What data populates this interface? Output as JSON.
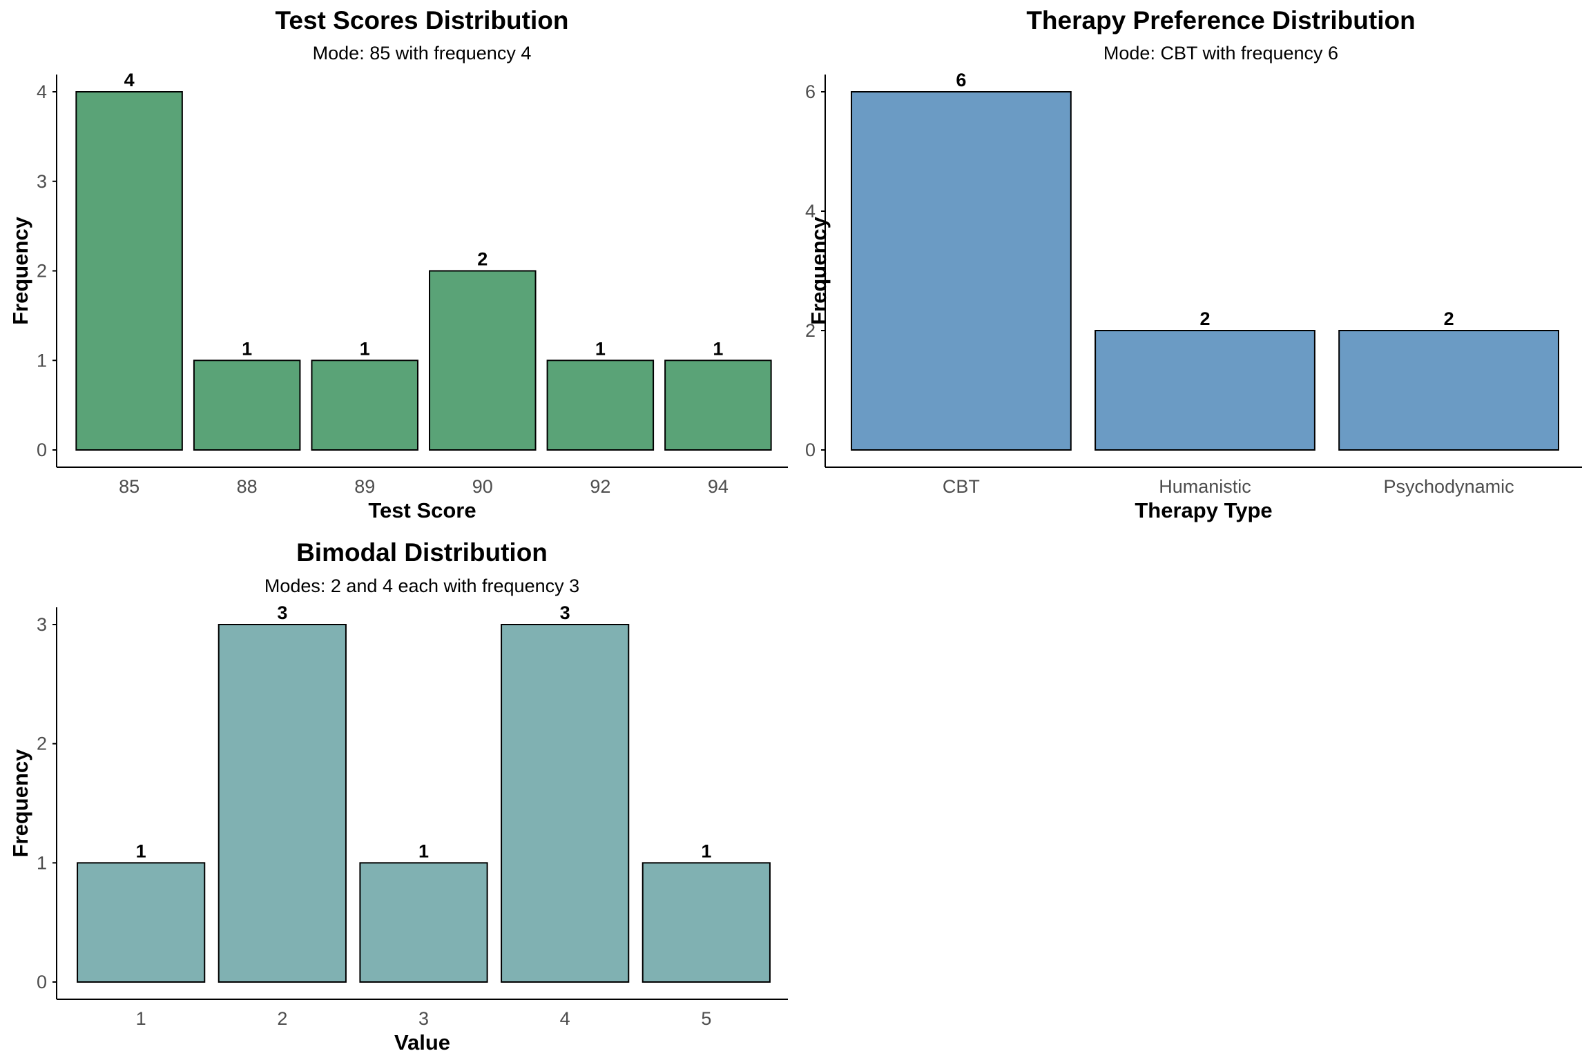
{
  "chart_data": [
    {
      "type": "bar",
      "title": "Test Scores Distribution",
      "subtitle": "Mode: 85 with frequency 4",
      "xlabel": "Test Score",
      "ylabel": "Frequency",
      "categories": [
        "85",
        "88",
        "89",
        "90",
        "92",
        "94"
      ],
      "values": [
        4,
        1,
        1,
        2,
        1,
        1
      ],
      "yticks": [
        0,
        1,
        2,
        3,
        4
      ],
      "ylim": [
        0,
        4
      ],
      "color": "#5aa377",
      "grid": false
    },
    {
      "type": "bar",
      "title": "Therapy Preference Distribution",
      "subtitle": "Mode: CBT with frequency 6",
      "xlabel": "Therapy Type",
      "ylabel": "Frequency",
      "categories": [
        "CBT",
        "Humanistic",
        "Psychodynamic"
      ],
      "values": [
        6,
        2,
        2
      ],
      "yticks": [
        0,
        2,
        4,
        6
      ],
      "ylim": [
        0,
        6
      ],
      "color": "#6b9bc4",
      "grid": false
    },
    {
      "type": "bar",
      "title": "Bimodal Distribution",
      "subtitle": "Modes: 2 and 4 each with frequency 3",
      "xlabel": "Value",
      "ylabel": "Frequency",
      "categories": [
        "1",
        "2",
        "3",
        "4",
        "5"
      ],
      "values": [
        1,
        3,
        1,
        3,
        1
      ],
      "yticks": [
        0,
        1,
        2,
        3
      ],
      "ylim": [
        0,
        3
      ],
      "color": "#80b1b2",
      "grid": false
    }
  ]
}
